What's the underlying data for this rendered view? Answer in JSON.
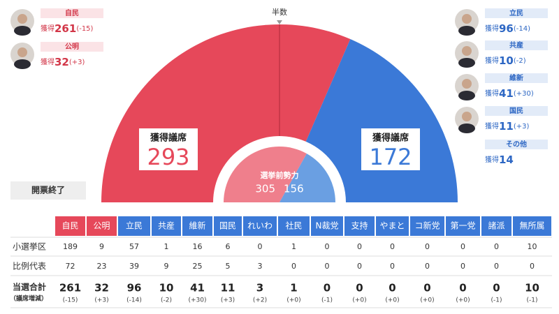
{
  "chart_data": {
    "type": "half-donut",
    "label": "獲得議席",
    "values": [
      293,
      172
    ],
    "colors": [
      "#e6485a",
      "#3b79d7"
    ],
    "half_label": "半数",
    "before": {
      "label": "選挙前勢力",
      "values": [
        305,
        156
      ],
      "colors": [
        "#ef7f8c",
        "#6a9fe2"
      ]
    }
  },
  "cards_label": "獲得",
  "cards_left": [
    {
      "name": "自民",
      "seats": 261,
      "change": "(-15)"
    },
    {
      "name": "公明",
      "seats": 32,
      "change": "(+3)"
    }
  ],
  "cards_right": [
    {
      "name": "立民",
      "seats": 96,
      "change": "(-14)"
    },
    {
      "name": "共産",
      "seats": 10,
      "change": "(-2)"
    },
    {
      "name": "維新",
      "seats": 41,
      "change": "(+30)"
    },
    {
      "name": "国民",
      "seats": 11,
      "change": "(+3)"
    },
    {
      "name": "その他",
      "seats": 14
    }
  ],
  "status": "開票終了",
  "table": {
    "columns": [
      "自民",
      "公明",
      "立民",
      "共産",
      "維新",
      "国民",
      "れいわ",
      "社民",
      "N裁党",
      "支持",
      "やまと",
      "コ新党",
      "第一党",
      "諸派",
      "無所属"
    ],
    "header_colors": [
      "#e6485a",
      "#e6485a",
      "#3b79d7",
      "#3b79d7",
      "#3b79d7",
      "#3b79d7",
      "#3b79d7",
      "#3b79d7",
      "#3b79d7",
      "#3b79d7",
      "#3b79d7",
      "#3b79d7",
      "#3b79d7",
      "#3b79d7",
      "#3b79d7"
    ],
    "rows": [
      {
        "label": "小選挙区",
        "values": [
          189,
          9,
          57,
          1,
          16,
          6,
          0,
          1,
          0,
          0,
          0,
          0,
          0,
          0,
          10
        ]
      },
      {
        "label": "比例代表",
        "values": [
          72,
          23,
          39,
          9,
          25,
          5,
          3,
          0,
          0,
          0,
          0,
          0,
          0,
          0,
          0
        ]
      }
    ],
    "total": {
      "label": "当選合計",
      "sublabel": "（議席増減）",
      "values": [
        261,
        32,
        96,
        10,
        41,
        11,
        3,
        1,
        0,
        0,
        0,
        0,
        0,
        0,
        10
      ],
      "changes": [
        "(-15)",
        "(+3)",
        "(-14)",
        "(-2)",
        "(+30)",
        "(+3)",
        "(+2)",
        "(+0)",
        "(-1)",
        "(+0)",
        "(+0)",
        "(+0)",
        "(+0)",
        "(-1)",
        "(-1)"
      ]
    }
  }
}
